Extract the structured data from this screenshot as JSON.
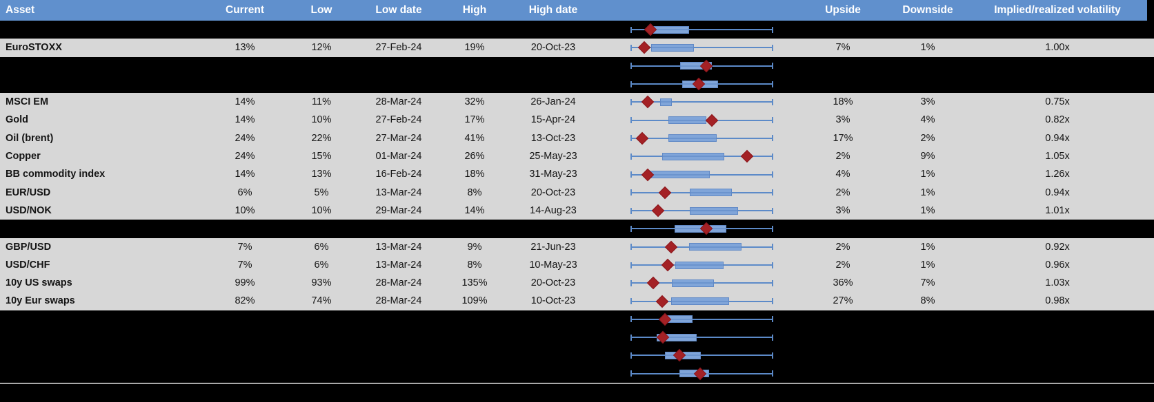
{
  "colors": {
    "header_bg": "#6090CD",
    "header_text": "#ffffff",
    "row_bg": "#D7D7D7",
    "blackout_bg": "#000000",
    "whisker_blue": "#5C8AC8",
    "box_fill": "#80A5D9",
    "box_border": "#6089C6",
    "marker_red": "#A42125",
    "divider_gray": "#A9A9A9"
  },
  "chart_data": {
    "type": "table",
    "title": "Asset volatility table with box-and-whisker range charts (whiskers = low/high range 0-100%, red diamond = current level)",
    "columns": [
      "Asset",
      "Current",
      "Low",
      "Low date",
      "High",
      "High date",
      "Upside",
      "Downside",
      "Implied/realized volatility"
    ],
    "boxplot_scale": {
      "min_pct": 0,
      "max_pct": 100,
      "note_units": "percent of low-to-high whisker range"
    },
    "rows": [
      {
        "blackout": true,
        "asset": "",
        "current": "",
        "low": "",
        "low_date": "",
        "high": "",
        "high_date": "",
        "upside": "",
        "downside": "",
        "vol": "",
        "box": {
          "box_start_pct": 15.6,
          "box_end_pct": 41.0,
          "marker_pct": 13.7
        }
      },
      {
        "blackout": false,
        "asset": "EuroSTOXX",
        "current": "13%",
        "low": "12%",
        "low_date": "27-Feb-24",
        "high": "19%",
        "high_date": "20-Oct-23",
        "upside": "7%",
        "downside": "1%",
        "vol": "1.00x",
        "box": {
          "box_start_pct": 14.0,
          "box_end_pct": 44.5,
          "marker_pct": 9.3
        }
      },
      {
        "blackout": true,
        "asset": "",
        "current": "",
        "low": "",
        "low_date": "",
        "high": "",
        "high_date": "",
        "upside": "",
        "downside": "",
        "vol": "",
        "box": {
          "box_start_pct": 34.6,
          "box_end_pct": 57.0,
          "marker_pct": 53.2
        }
      },
      {
        "blackout": true,
        "asset": "",
        "current": "",
        "low": "",
        "low_date": "",
        "high": "",
        "high_date": "",
        "upside": "",
        "downside": "",
        "vol": "",
        "box": {
          "box_start_pct": 36.0,
          "box_end_pct": 61.5,
          "marker_pct": 47.8
        }
      },
      {
        "blackout": false,
        "asset": "MSCI EM",
        "current": "14%",
        "low": "11%",
        "low_date": "28-Mar-24",
        "high": "32%",
        "high_date": "26-Jan-24",
        "upside": "18%",
        "downside": "3%",
        "vol": "0.75x",
        "box": {
          "box_start_pct": 20.5,
          "box_end_pct": 28.8,
          "marker_pct": 11.7
        }
      },
      {
        "blackout": false,
        "asset": "Gold",
        "current": "14%",
        "low": "10%",
        "low_date": "27-Feb-24",
        "high": "17%",
        "high_date": "15-Apr-24",
        "upside": "3%",
        "downside": "4%",
        "vol": "0.82x",
        "box": {
          "box_start_pct": 26.3,
          "box_end_pct": 53.2,
          "marker_pct": 57.1
        }
      },
      {
        "blackout": false,
        "asset": "Oil (brent)",
        "current": "24%",
        "low": "22%",
        "low_date": "27-Mar-24",
        "high": "41%",
        "high_date": "13-Oct-23",
        "upside": "17%",
        "downside": "2%",
        "vol": "0.94x",
        "box": {
          "box_start_pct": 26.3,
          "box_end_pct": 60.5,
          "marker_pct": 7.8
        }
      },
      {
        "blackout": false,
        "asset": "Copper",
        "current": "24%",
        "low": "15%",
        "low_date": "01-Mar-24",
        "high": "26%",
        "high_date": "25-May-23",
        "upside": "2%",
        "downside": "9%",
        "vol": "1.05x",
        "box": {
          "box_start_pct": 22.0,
          "box_end_pct": 65.9,
          "marker_pct": 82.0
        }
      },
      {
        "blackout": false,
        "asset": "BB commodity index",
        "current": "14%",
        "low": "13%",
        "low_date": "16-Feb-24",
        "high": "18%",
        "high_date": "31-May-23",
        "upside": "4%",
        "downside": "1%",
        "vol": "1.26x",
        "box": {
          "box_start_pct": 12.7,
          "box_end_pct": 55.6,
          "marker_pct": 11.7
        }
      },
      {
        "blackout": false,
        "asset": "EUR/USD",
        "current": "6%",
        "low": "5%",
        "low_date": "13-Mar-24",
        "high": "8%",
        "high_date": "20-Oct-23",
        "upside": "2%",
        "downside": "1%",
        "vol": "0.94x",
        "box": {
          "box_start_pct": 41.5,
          "box_end_pct": 71.2,
          "marker_pct": 23.9
        }
      },
      {
        "blackout": false,
        "asset": "USD/NOK",
        "current": "10%",
        "low": "10%",
        "low_date": "29-Mar-24",
        "high": "14%",
        "high_date": "14-Aug-23",
        "upside": "3%",
        "downside": "1%",
        "vol": "1.01x",
        "box": {
          "box_start_pct": 41.5,
          "box_end_pct": 75.6,
          "marker_pct": 19.0
        }
      },
      {
        "blackout": true,
        "asset": "",
        "current": "",
        "low": "",
        "low_date": "",
        "high": "",
        "high_date": "",
        "upside": "",
        "downside": "",
        "vol": "",
        "box": {
          "box_start_pct": 30.7,
          "box_end_pct": 67.3,
          "marker_pct": 53.2
        }
      },
      {
        "blackout": false,
        "asset": "GBP/USD",
        "current": "7%",
        "low": "6%",
        "low_date": "13-Mar-24",
        "high": "9%",
        "high_date": "21-Jun-23",
        "upside": "2%",
        "downside": "1%",
        "vol": "0.92x",
        "box": {
          "box_start_pct": 41.0,
          "box_end_pct": 78.0,
          "marker_pct": 28.3
        }
      },
      {
        "blackout": false,
        "asset": "USD/CHF",
        "current": "7%",
        "low": "6%",
        "low_date": "13-Mar-24",
        "high": "8%",
        "high_date": "10-May-23",
        "upside": "2%",
        "downside": "1%",
        "vol": "0.96x",
        "box": {
          "box_start_pct": 31.2,
          "box_end_pct": 65.4,
          "marker_pct": 25.9
        }
      },
      {
        "blackout": false,
        "asset": "10y US swaps",
        "current": "99%",
        "low": "93%",
        "low_date": "28-Mar-24",
        "high": "135%",
        "high_date": "20-Oct-23",
        "upside": "36%",
        "downside": "7%",
        "vol": "1.03x",
        "box": {
          "box_start_pct": 29.0,
          "box_end_pct": 58.5,
          "marker_pct": 15.6
        }
      },
      {
        "blackout": false,
        "asset": "10y Eur swaps",
        "current": "82%",
        "low": "74%",
        "low_date": "28-Mar-24",
        "high": "109%",
        "high_date": "10-Oct-23",
        "upside": "27%",
        "downside": "8%",
        "vol": "0.98x",
        "box": {
          "box_start_pct": 28.3,
          "box_end_pct": 69.3,
          "marker_pct": 22.0
        }
      },
      {
        "blackout": true,
        "asset": "",
        "current": "",
        "low": "",
        "low_date": "",
        "high": "",
        "high_date": "",
        "upside": "",
        "downside": "",
        "vol": "",
        "box": {
          "box_start_pct": 24.4,
          "box_end_pct": 43.4,
          "marker_pct": 23.9
        }
      },
      {
        "blackout": true,
        "asset": "",
        "current": "",
        "low": "",
        "low_date": "",
        "high": "",
        "high_date": "",
        "upside": "",
        "downside": "",
        "vol": "",
        "box": {
          "box_start_pct": 18.0,
          "box_end_pct": 46.3,
          "marker_pct": 22.5
        }
      },
      {
        "blackout": true,
        "asset": "",
        "current": "",
        "low": "",
        "low_date": "",
        "high": "",
        "high_date": "",
        "upside": "",
        "downside": "",
        "vol": "",
        "box": {
          "box_start_pct": 23.9,
          "box_end_pct": 49.3,
          "marker_pct": 34.1
        }
      },
      {
        "blackout": true,
        "asset": "",
        "current": "",
        "low": "",
        "low_date": "",
        "high": "",
        "high_date": "",
        "upside": "",
        "downside": "",
        "vol": "",
        "box": {
          "box_start_pct": 34.1,
          "box_end_pct": 55.1,
          "marker_pct": 48.8
        }
      }
    ]
  }
}
